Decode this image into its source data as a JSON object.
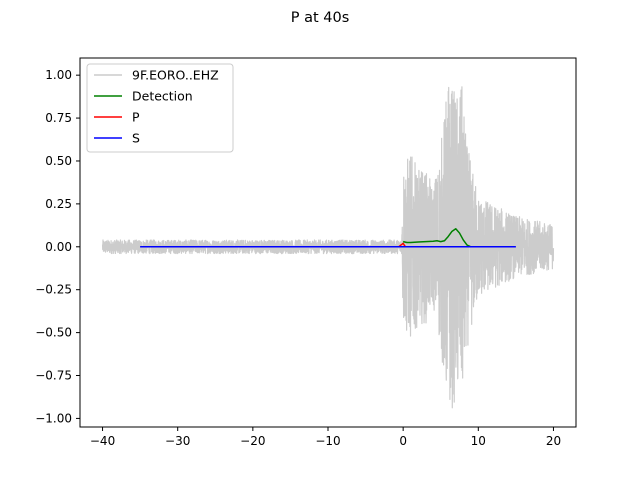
{
  "chart_data": {
    "type": "line",
    "title": "P at 40s",
    "xlabel": "",
    "ylabel": "",
    "xlim": [
      -43,
      23
    ],
    "ylim": [
      -1.05,
      1.1
    ],
    "xticks": [
      -40,
      -30,
      -20,
      -10,
      0,
      10,
      20
    ],
    "yticks": [
      -1.0,
      -0.75,
      -0.5,
      -0.25,
      0.0,
      0.25,
      0.5,
      0.75,
      1.0
    ],
    "xtick_labels": [
      "−40",
      "−30",
      "−20",
      "−10",
      "0",
      "10",
      "20"
    ],
    "ytick_labels": [
      "−1.00",
      "−0.75",
      "−0.50",
      "−0.25",
      "0.00",
      "0.25",
      "0.50",
      "0.75",
      "1.00"
    ],
    "grid": false,
    "legend_position": "upper-left",
    "series": [
      {
        "name": "9F.EORO..EHZ",
        "color": "#cccccc",
        "kind": "waveform",
        "x_range": [
          -40,
          20
        ],
        "noise_amplitude": 0.04,
        "envelope": [
          [
            -40,
            0.04
          ],
          [
            -0.2,
            0.04
          ],
          [
            0.0,
            0.5
          ],
          [
            1.0,
            0.55
          ],
          [
            2.0,
            0.45
          ],
          [
            3.0,
            0.45
          ],
          [
            4.0,
            0.35
          ],
          [
            5.0,
            0.6
          ],
          [
            6.0,
            1.0
          ],
          [
            7.0,
            0.9
          ],
          [
            7.8,
            0.95
          ],
          [
            8.5,
            0.6
          ],
          [
            10.0,
            0.3
          ],
          [
            12.0,
            0.25
          ],
          [
            15.0,
            0.18
          ],
          [
            18.0,
            0.15
          ],
          [
            20.0,
            0.13
          ]
        ]
      },
      {
        "name": "Detection",
        "color": "#008000",
        "x": [
          0.0,
          0.5,
          1.0,
          2.0,
          3.0,
          4.0,
          4.5,
          5.0,
          5.5,
          6.0,
          6.5,
          7.0,
          7.5,
          8.0,
          8.5,
          9.0
        ],
        "y": [
          0.03,
          0.025,
          0.025,
          0.028,
          0.03,
          0.032,
          0.035,
          0.03,
          0.035,
          0.06,
          0.09,
          0.105,
          0.08,
          0.04,
          0.01,
          0.0
        ]
      },
      {
        "name": "P",
        "color": "#ff0000",
        "x": [
          -0.6,
          -0.3,
          0.0,
          0.3
        ],
        "y": [
          0.0,
          0.01,
          0.02,
          0.0
        ]
      },
      {
        "name": "S",
        "color": "#0000ff",
        "x": [
          -35,
          -20,
          -5,
          0,
          5,
          10,
          15
        ],
        "y": [
          0.0,
          0.0,
          0.0,
          0.0,
          0.0,
          0.0,
          0.0
        ]
      }
    ]
  }
}
